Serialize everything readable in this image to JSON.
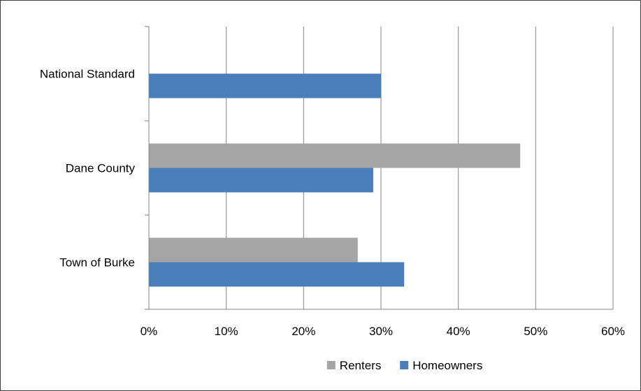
{
  "chart_data": {
    "type": "bar",
    "orientation": "horizontal",
    "categories": [
      "Town of Burke",
      "Dane County",
      "National Standard"
    ],
    "series": [
      {
        "name": "Renters",
        "values": [
          0.27,
          0.48,
          null
        ],
        "color": "#A5A5A5"
      },
      {
        "name": "Homeowners",
        "values": [
          0.33,
          0.29,
          0.3
        ],
        "color": "#4A7EBB"
      }
    ],
    "xlim": [
      0,
      0.6
    ],
    "xticks": [
      0,
      0.1,
      0.2,
      0.3,
      0.4,
      0.5,
      0.6
    ],
    "xtick_labels": [
      "0%",
      "10%",
      "20%",
      "30%",
      "40%",
      "50%",
      "60%"
    ],
    "grid": "vertical",
    "legend_position": "bottom",
    "title": "",
    "xlabel": "",
    "ylabel": ""
  }
}
